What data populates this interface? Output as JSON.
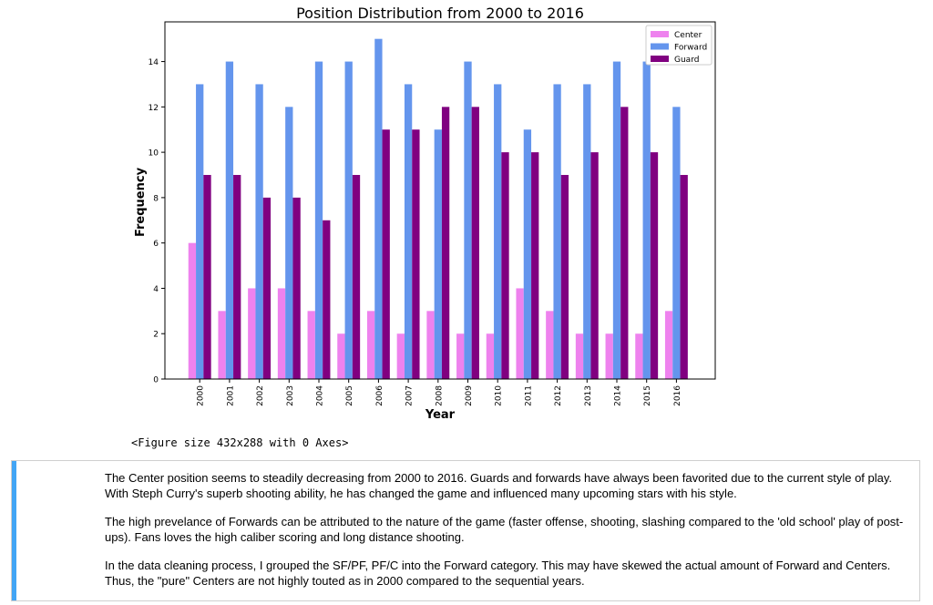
{
  "chart_data": {
    "type": "bar",
    "title": "Position Distribution from 2000 to 2016",
    "xlabel": "Year",
    "ylabel": "Frequency",
    "categories": [
      "2000",
      "2001",
      "2002",
      "2003",
      "2004",
      "2005",
      "2006",
      "2007",
      "2008",
      "2009",
      "2010",
      "2011",
      "2012",
      "2013",
      "2014",
      "2015",
      "2016"
    ],
    "series": [
      {
        "name": "Center",
        "color": "#ee82ee",
        "values": [
          6,
          3,
          4,
          4,
          3,
          2,
          3,
          2,
          3,
          2,
          2,
          4,
          3,
          2,
          2,
          2,
          3
        ]
      },
      {
        "name": "Forward",
        "color": "#6495ed",
        "values": [
          13,
          14,
          13,
          12,
          14,
          14,
          15,
          13,
          11,
          14,
          13,
          11,
          13,
          13,
          14,
          14,
          12
        ]
      },
      {
        "name": "Guard",
        "color": "#800080",
        "values": [
          9,
          9,
          8,
          8,
          7,
          9,
          11,
          11,
          12,
          12,
          10,
          10,
          9,
          10,
          12,
          10,
          9
        ]
      }
    ],
    "ylim": [
      0,
      15.75
    ],
    "yticks": [
      0,
      2,
      4,
      6,
      8,
      10,
      12,
      14
    ],
    "grid": false,
    "legend_position": "top-right"
  },
  "output": {
    "figure_text": "<Figure size 432x288 with 0 Axes>"
  },
  "markdown": {
    "paragraphs": [
      "The Center position seems to steadily decreasing from 2000 to 2016. Guards and forwards have always been favorited due to the current style of play. With Steph Curry's superb shooting ability, he has changed the game and influenced many upcoming stars with his style.",
      "The high prevelance of Forwards can be attributed to the nature of the game (faster offense, shooting, slashing compared to the 'old school' play of post-ups). Fans loves the high caliber scoring and long distance shooting.",
      "In the data cleaning process, I grouped the SF/PF, PF/C into the Forward category. This may have skewed the actual amount of Forward and Centers. Thus, the \"pure\" Centers are not highly touted as in 2000 compared to the sequential years."
    ]
  }
}
